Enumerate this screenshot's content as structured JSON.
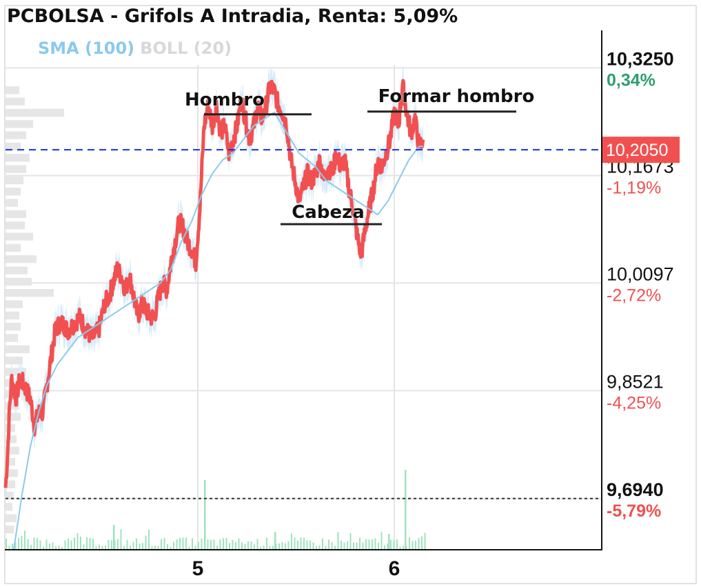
{
  "header": {
    "title": "PCBOLSA - Grifols A Intradia, Renta: 5,09%",
    "legend_sma": "SMA (100)",
    "legend_boll": "BOLL (20)"
  },
  "colors": {
    "price": "#f25050",
    "sma": "#8cc9ee",
    "band": "#d7ecfa",
    "positive": "#2e9e6e",
    "negative": "#f05050",
    "current_line": "#1a2ee8",
    "grid": "#e4e4e4",
    "volume": "#9fe3bd",
    "volume_profile": "#e6e6e6"
  },
  "chart_data": {
    "type": "line",
    "title": "PCBOLSA - Grifols A Intradia, Renta: 5,09%",
    "x_ticks": [
      {
        "label": "5",
        "x": 93
      },
      {
        "label": "6",
        "x": 188
      }
    ],
    "xlim": [
      0,
      288
    ],
    "ylim": [
      9.62,
      10.38
    ],
    "price_levels": [
      {
        "value": 10.325,
        "label": "10,3250",
        "change": "0,34%",
        "sign": "pos",
        "emphasis": true
      },
      {
        "value": 10.1673,
        "label": "10,1673",
        "change": "-1,19%",
        "sign": "neg",
        "emphasis": false
      },
      {
        "value": 10.0097,
        "label": "10,0097",
        "change": "-2,72%",
        "sign": "neg",
        "emphasis": false
      },
      {
        "value": 9.8521,
        "label": "9,8521",
        "change": "-4,25%",
        "sign": "neg",
        "emphasis": false
      },
      {
        "value": 9.694,
        "label": "9,6940",
        "change": "-5,79%",
        "sign": "neg",
        "emphasis": true
      }
    ],
    "current_price": {
      "value": 10.205,
      "label": "10,2050"
    },
    "reference_price": 9.694,
    "price_keypoints": [
      [
        0,
        9.71
      ],
      [
        1,
        9.76
      ],
      [
        2,
        9.83
      ],
      [
        3,
        9.87
      ],
      [
        5,
        9.84
      ],
      [
        7,
        9.87
      ],
      [
        9,
        9.86
      ],
      [
        12,
        9.84
      ],
      [
        14,
        9.8
      ],
      [
        16,
        9.82
      ],
      [
        18,
        9.82
      ],
      [
        20,
        9.86
      ],
      [
        22,
        9.9
      ],
      [
        24,
        9.94
      ],
      [
        26,
        9.95
      ],
      [
        28,
        9.95
      ],
      [
        30,
        9.94
      ],
      [
        33,
        9.95
      ],
      [
        36,
        9.96
      ],
      [
        39,
        9.94
      ],
      [
        42,
        9.93
      ],
      [
        45,
        9.94
      ],
      [
        48,
        9.98
      ],
      [
        50,
        9.99
      ],
      [
        52,
        10.01
      ],
      [
        54,
        10.03
      ],
      [
        56,
        10.02
      ],
      [
        58,
        10.0
      ],
      [
        60,
        10.02
      ],
      [
        62,
        9.99
      ],
      [
        64,
        9.96
      ],
      [
        66,
        9.98
      ],
      [
        68,
        9.97
      ],
      [
        70,
        9.96
      ],
      [
        72,
        9.96
      ],
      [
        74,
        9.99
      ],
      [
        76,
        10.01
      ],
      [
        78,
        10.0
      ],
      [
        80,
        10.04
      ],
      [
        82,
        10.07
      ],
      [
        84,
        10.1
      ],
      [
        86,
        10.09
      ],
      [
        88,
        10.07
      ],
      [
        90,
        10.06
      ],
      [
        92,
        10.04
      ],
      [
        94,
        10.12
      ],
      [
        96,
        10.24
      ],
      [
        98,
        10.27
      ],
      [
        100,
        10.24
      ],
      [
        102,
        10.27
      ],
      [
        104,
        10.23
      ],
      [
        106,
        10.24
      ],
      [
        108,
        10.2
      ],
      [
        110,
        10.22
      ],
      [
        112,
        10.24
      ],
      [
        114,
        10.28
      ],
      [
        116,
        10.25
      ],
      [
        118,
        10.22
      ],
      [
        120,
        10.24
      ],
      [
        122,
        10.27
      ],
      [
        124,
        10.25
      ],
      [
        126,
        10.27
      ],
      [
        128,
        10.3
      ],
      [
        130,
        10.29
      ],
      [
        132,
        10.27
      ],
      [
        134,
        10.26
      ],
      [
        136,
        10.24
      ],
      [
        138,
        10.19
      ],
      [
        140,
        10.16
      ],
      [
        142,
        10.13
      ],
      [
        144,
        10.15
      ],
      [
        146,
        10.17
      ],
      [
        148,
        10.16
      ],
      [
        150,
        10.17
      ],
      [
        152,
        10.19
      ],
      [
        154,
        10.16
      ],
      [
        156,
        10.18
      ],
      [
        158,
        10.17
      ],
      [
        160,
        10.2
      ],
      [
        162,
        10.18
      ],
      [
        164,
        10.19
      ],
      [
        166,
        10.15
      ],
      [
        168,
        10.12
      ],
      [
        170,
        10.08
      ],
      [
        172,
        10.05
      ],
      [
        174,
        10.09
      ],
      [
        176,
        10.12
      ],
      [
        178,
        10.15
      ],
      [
        180,
        10.19
      ],
      [
        182,
        10.18
      ],
      [
        184,
        10.2
      ],
      [
        186,
        10.22
      ],
      [
        188,
        10.26
      ],
      [
        190,
        10.24
      ],
      [
        192,
        10.3
      ],
      [
        194,
        10.26
      ],
      [
        196,
        10.23
      ],
      [
        198,
        10.25
      ],
      [
        200,
        10.21
      ],
      [
        202,
        10.22
      ]
    ],
    "sma_keypoints": [
      [
        4,
        9.62
      ],
      [
        8,
        9.7
      ],
      [
        12,
        9.77
      ],
      [
        16,
        9.82
      ],
      [
        20,
        9.86
      ],
      [
        25,
        9.89
      ],
      [
        30,
        9.91
      ],
      [
        35,
        9.93
      ],
      [
        40,
        9.94
      ],
      [
        45,
        9.95
      ],
      [
        50,
        9.96
      ],
      [
        55,
        9.97
      ],
      [
        60,
        9.98
      ],
      [
        65,
        9.99
      ],
      [
        70,
        10.0
      ],
      [
        75,
        10.01
      ],
      [
        80,
        10.03
      ],
      [
        85,
        10.07
      ],
      [
        90,
        10.1
      ],
      [
        95,
        10.14
      ],
      [
        100,
        10.17
      ],
      [
        105,
        10.19
      ],
      [
        110,
        10.2
      ],
      [
        115,
        10.22
      ],
      [
        120,
        10.24
      ],
      [
        125,
        10.25
      ],
      [
        130,
        10.26
      ],
      [
        134,
        10.24
      ],
      [
        138,
        10.22
      ],
      [
        142,
        10.2
      ],
      [
        146,
        10.19
      ],
      [
        150,
        10.18
      ],
      [
        155,
        10.16
      ],
      [
        160,
        10.15
      ],
      [
        165,
        10.14
      ],
      [
        170,
        10.13
      ],
      [
        175,
        10.12
      ],
      [
        180,
        10.11
      ],
      [
        185,
        10.13
      ],
      [
        190,
        10.16
      ],
      [
        195,
        10.19
      ],
      [
        200,
        10.21
      ],
      [
        202,
        10.21
      ]
    ],
    "volume_spikes": [
      {
        "x": 96,
        "value": 100
      },
      {
        "x": 193,
        "value": 115
      },
      {
        "x": 52,
        "value": 35
      },
      {
        "x": 130,
        "value": 25
      },
      {
        "x": 185,
        "value": 22
      }
    ],
    "volume_profile_widths": [
      20,
      28,
      85,
      40,
      30,
      22,
      35,
      30,
      26,
      22,
      18,
      30,
      28,
      40,
      22,
      45,
      32,
      38,
      70,
      25,
      20,
      22,
      18,
      35,
      25,
      30,
      12,
      16,
      20,
      22,
      14,
      16,
      20,
      14,
      18,
      14,
      12,
      10,
      16,
      12
    ],
    "annotations": [
      {
        "text": "Hombro",
        "x": 106,
        "value": 10.27,
        "line_x": [
          96,
          148
        ],
        "line_value": 10.257
      },
      {
        "text": "Cabeza",
        "x": 156,
        "value": 10.105,
        "line_x": [
          133,
          182
        ],
        "line_value": 10.096
      },
      {
        "text": "Formar hombro",
        "x": 218,
        "value": 10.275,
        "line_x": [
          175,
          247
        ],
        "line_value": 10.261
      }
    ]
  }
}
